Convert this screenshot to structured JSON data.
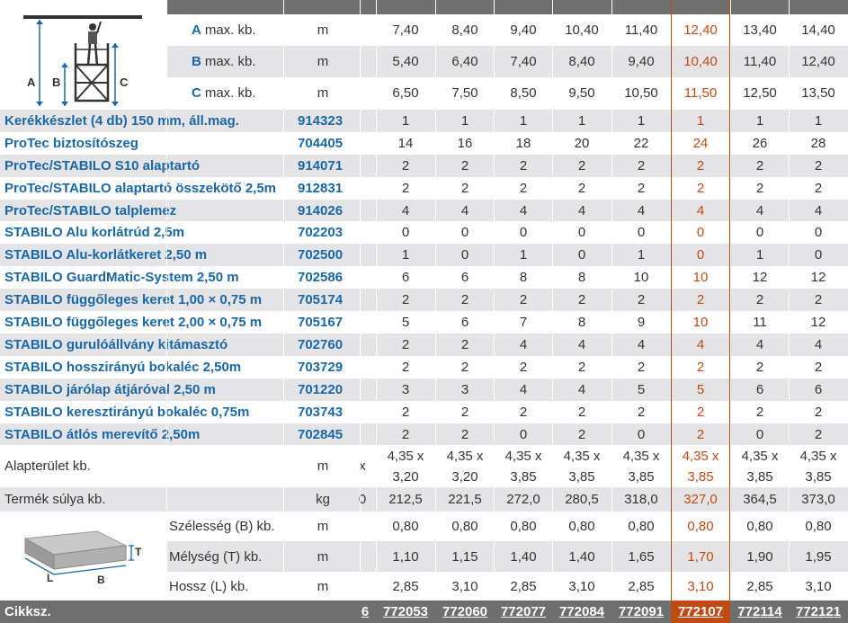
{
  "dimensions": [
    {
      "letter": "A",
      "label": "max. kb.",
      "unit": "m",
      "values": [
        "7,40",
        "8,40",
        "9,40",
        "10,40",
        "11,40",
        "12,40",
        "13,40",
        "14,40"
      ]
    },
    {
      "letter": "B",
      "label": "max. kb.",
      "unit": "m",
      "values": [
        "5,40",
        "6,40",
        "7,40",
        "8,40",
        "9,40",
        "10,40",
        "11,40",
        "12,40"
      ]
    },
    {
      "letter": "C",
      "label": "max. kb.",
      "unit": "m",
      "values": [
        "6,50",
        "7,50",
        "8,50",
        "9,50",
        "10,50",
        "11,50",
        "12,50",
        "13,50"
      ]
    }
  ],
  "diagram_labels": {
    "a": "A",
    "b": "B",
    "c": "C",
    "t": "T",
    "l": "L",
    "bb": "B"
  },
  "components": [
    {
      "name": "Kerékkészlet (4 db) 150 mm, áll.mag.",
      "code": "914323",
      "values": [
        "1",
        "1",
        "1",
        "1",
        "1",
        "1",
        "1",
        "1"
      ]
    },
    {
      "name": "ProTec biztosítószeg",
      "code": "704405",
      "values": [
        "14",
        "16",
        "18",
        "20",
        "22",
        "24",
        "26",
        "28"
      ]
    },
    {
      "name": "ProTec/STABILO S10 alaptartó",
      "code": "914071",
      "values": [
        "2",
        "2",
        "2",
        "2",
        "2",
        "2",
        "2",
        "2"
      ]
    },
    {
      "name": "ProTec/STABILO alaptartó összekötő 2,5m",
      "code": "912831",
      "values": [
        "2",
        "2",
        "2",
        "2",
        "2",
        "2",
        "2",
        "2"
      ]
    },
    {
      "name": "ProTec/STABILO talplemez",
      "code": "914026",
      "values": [
        "4",
        "4",
        "4",
        "4",
        "4",
        "4",
        "4",
        "4"
      ]
    },
    {
      "name": "STABILO Alu korlátrúd 2,5m",
      "code": "702203",
      "values": [
        "0",
        "0",
        "0",
        "0",
        "0",
        "0",
        "0",
        "0"
      ]
    },
    {
      "name": "STABILO Alu-korlátkeret 2,50 m",
      "code": "702500",
      "values": [
        "1",
        "0",
        "1",
        "0",
        "1",
        "0",
        "1",
        "0"
      ]
    },
    {
      "name": "STABILO GuardMatic-System 2,50 m",
      "code": "702586",
      "values": [
        "6",
        "6",
        "8",
        "8",
        "10",
        "10",
        "12",
        "12"
      ]
    },
    {
      "name": "STABILO függőleges keret 1,00 × 0,75 m",
      "code": "705174",
      "values": [
        "2",
        "2",
        "2",
        "2",
        "2",
        "2",
        "2",
        "2"
      ]
    },
    {
      "name": "STABILO függőleges keret 2,00 × 0,75 m",
      "code": "705167",
      "values": [
        "5",
        "6",
        "7",
        "8",
        "9",
        "10",
        "11",
        "12"
      ]
    },
    {
      "name": "STABILO gurulóállvány kitámasztó",
      "code": "702760",
      "values": [
        "2",
        "2",
        "4",
        "4",
        "4",
        "4",
        "4",
        "4"
      ]
    },
    {
      "name": "STABILO hosszirányú bokaléc 2,50m",
      "code": "703729",
      "values": [
        "2",
        "2",
        "2",
        "2",
        "2",
        "2",
        "2",
        "2"
      ]
    },
    {
      "name": "STABILO járólap átjáróval 2,50 m",
      "code": "701220",
      "values": [
        "3",
        "3",
        "4",
        "4",
        "5",
        "5",
        "6",
        "6"
      ]
    },
    {
      "name": "STABILO keresztirányú bokaléc 0,75m",
      "code": "703743",
      "values": [
        "2",
        "2",
        "2",
        "2",
        "2",
        "2",
        "2",
        "2"
      ]
    },
    {
      "name": "STABILO átlós merevítő 2,50m",
      "code": "702845",
      "values": [
        "2",
        "2",
        "0",
        "2",
        "0",
        "2",
        "0",
        "2"
      ]
    }
  ],
  "base_area": {
    "label": "Alapterület kb.",
    "unit": "m",
    "cut_mark": "x",
    "values": [
      "4,35 x 3,20",
      "4,35 x 3,20",
      "4,35 x 3,85",
      "4,35 x 3,85",
      "4,35 x 3,85",
      "4,35 x 3,85",
      "4,35 x 3,85",
      "4,35 x 3,85"
    ]
  },
  "weight": {
    "label": "Termék súlya kb.",
    "unit": "kg",
    "cut_mark": "0",
    "values": [
      "212,5",
      "221,5",
      "272,0",
      "280,5",
      "318,0",
      "327,0",
      "364,5",
      "373,0"
    ]
  },
  "packaging": [
    {
      "label": "Szélesség (B) kb.",
      "unit": "m",
      "values": [
        "0,80",
        "0,80",
        "0,80",
        "0,80",
        "0,80",
        "0,80",
        "0,80",
        "0,80"
      ]
    },
    {
      "label": "Mélység (T) kb.",
      "unit": "m",
      "values": [
        "1,10",
        "1,15",
        "1,40",
        "1,40",
        "1,65",
        "1,70",
        "1,90",
        "1,95"
      ]
    },
    {
      "label": "Hossz (L) kb.",
      "unit": "m",
      "values": [
        "2,85",
        "3,10",
        "2,85",
        "3,10",
        "2,85",
        "3,10",
        "2,85",
        "3,10"
      ]
    }
  ],
  "footer": {
    "label": "Cikksz.",
    "cut_mark": "6",
    "articles": [
      "772053",
      "772060",
      "772077",
      "772084",
      "772091",
      "772107",
      "772114",
      "772121"
    ]
  },
  "highlight_column_index": 5,
  "colors": {
    "highlight": "#c04a14",
    "link_blue": "#1a67a6",
    "shade": "#e4e4e6",
    "header_gray": "#6f6f6f"
  }
}
